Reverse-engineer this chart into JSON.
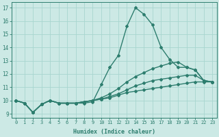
{
  "xlabel": "Humidex (Indice chaleur)",
  "xlim": [
    -0.5,
    23.5
  ],
  "ylim": [
    8.7,
    17.4
  ],
  "yticks": [
    9,
    10,
    11,
    12,
    13,
    14,
    15,
    16,
    17
  ],
  "xticks": [
    0,
    1,
    2,
    3,
    4,
    5,
    6,
    7,
    8,
    9,
    10,
    11,
    12,
    13,
    14,
    15,
    16,
    17,
    18,
    19,
    20,
    21,
    22,
    23
  ],
  "bg_color": "#cce9e5",
  "grid_color": "#a8d5cf",
  "line_color": "#2d7d6e",
  "line_width": 1.0,
  "marker": "D",
  "marker_size": 2.0,
  "series": [
    [
      10.0,
      9.8,
      9.1,
      9.7,
      10.0,
      9.8,
      9.8,
      9.8,
      9.8,
      9.9,
      11.2,
      12.5,
      13.4,
      15.6,
      17.0,
      16.5,
      15.7,
      14.0,
      13.1,
      12.5,
      12.5,
      12.3,
      11.5,
      11.4
    ],
    [
      10.0,
      9.8,
      9.1,
      9.7,
      10.0,
      9.8,
      9.8,
      9.8,
      9.9,
      10.0,
      10.2,
      10.5,
      10.9,
      11.4,
      11.8,
      12.1,
      12.4,
      12.6,
      12.8,
      12.9,
      12.5,
      12.3,
      11.5,
      11.4
    ],
    [
      10.0,
      9.8,
      9.1,
      9.7,
      10.0,
      9.8,
      9.8,
      9.8,
      9.9,
      10.0,
      10.1,
      10.3,
      10.5,
      10.8,
      11.1,
      11.3,
      11.5,
      11.6,
      11.7,
      11.8,
      11.9,
      11.9,
      11.5,
      11.4
    ],
    [
      10.0,
      9.8,
      9.1,
      9.7,
      10.0,
      9.8,
      9.8,
      9.8,
      9.9,
      10.0,
      10.1,
      10.2,
      10.4,
      10.6,
      10.7,
      10.8,
      10.9,
      11.0,
      11.1,
      11.2,
      11.3,
      11.4,
      11.4,
      11.4
    ]
  ]
}
